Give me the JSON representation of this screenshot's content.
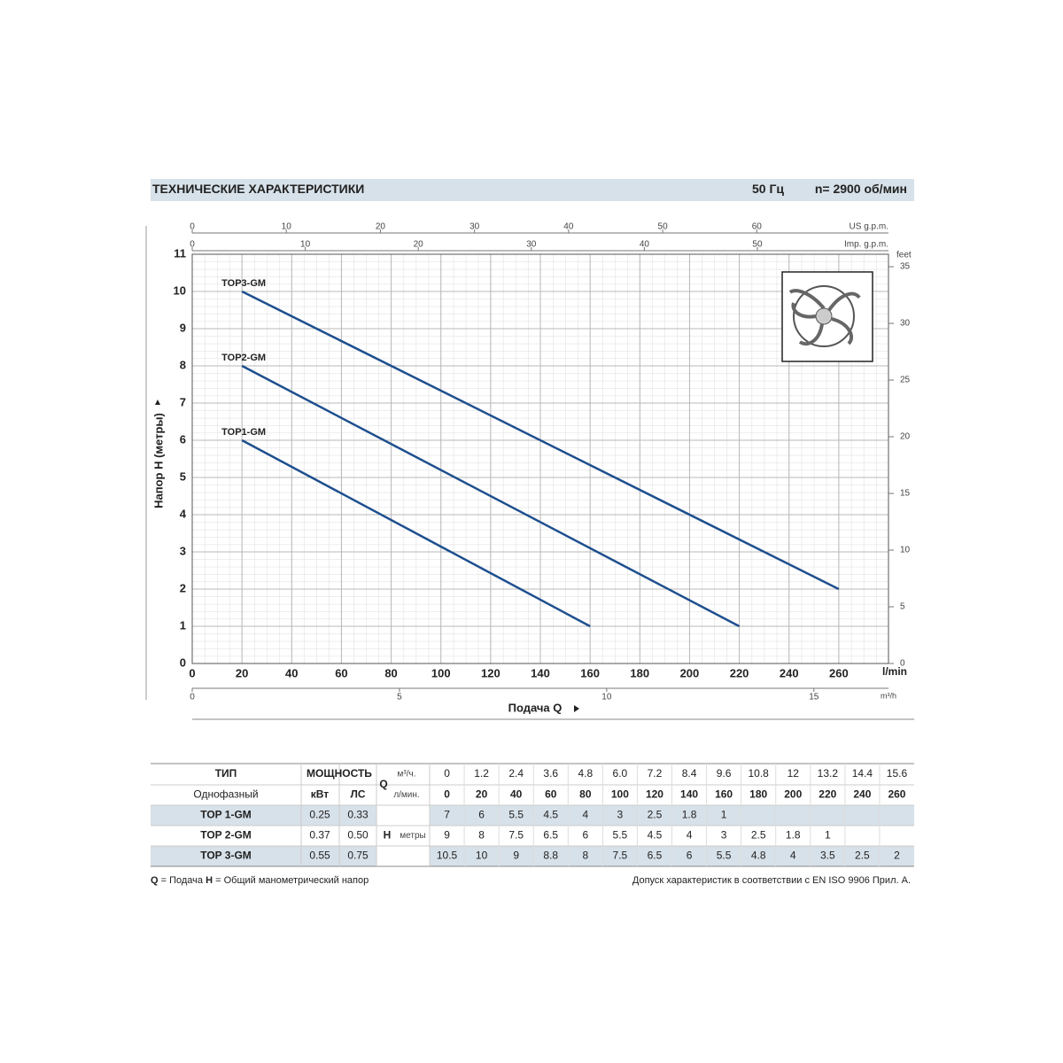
{
  "header": {
    "title": "ТЕХНИЧЕСКИЕ ХАРАКТЕРИСТИКИ",
    "frequency": "50 Гц",
    "speed": "n= 2900 об/мин"
  },
  "chart_data": {
    "type": "line",
    "xlabel": "Подача Q",
    "ylabel": "Напор H (метры)",
    "xunit": "l/min",
    "xlim": [
      0,
      280
    ],
    "xticks": [
      0,
      20,
      40,
      60,
      80,
      100,
      120,
      140,
      160,
      180,
      200,
      220,
      240,
      260
    ],
    "ylim": [
      0,
      11
    ],
    "yticks": [
      0,
      1,
      2,
      3,
      4,
      5,
      6,
      7,
      8,
      9,
      10,
      11
    ],
    "grid": true,
    "series": [
      {
        "name": "TOP3-GM",
        "color": "#1d4f8e",
        "x": [
          20,
          260
        ],
        "values": [
          10,
          2
        ]
      },
      {
        "name": "TOP2-GM",
        "color": "#1d4f8e",
        "x": [
          20,
          220
        ],
        "values": [
          8,
          1
        ]
      },
      {
        "name": "TOP1-GM",
        "color": "#1d4f8e",
        "x": [
          20,
          160
        ],
        "values": [
          6,
          1
        ]
      }
    ],
    "secondary_axes": [
      {
        "label": "US g.p.m.",
        "position": "top",
        "lim": [
          0,
          74
        ],
        "ticks": [
          0,
          10,
          20,
          30,
          40,
          50,
          60
        ]
      },
      {
        "label": "Imp. g.p.m.",
        "position": "top",
        "lim": [
          0,
          61.6
        ],
        "ticks": [
          0,
          10,
          20,
          30,
          40,
          50
        ]
      },
      {
        "label": "m³/h",
        "position": "bottom",
        "lim": [
          0,
          16.8
        ],
        "ticks": [
          0,
          5,
          10,
          15
        ]
      },
      {
        "label": "feet",
        "position": "right",
        "lim": [
          0,
          36.1
        ],
        "ticks": [
          0,
          5,
          10,
          15,
          20,
          25,
          30,
          35
        ]
      }
    ]
  },
  "table": {
    "type_header": "ТИП",
    "phase": "Однофазный",
    "power_header": "МОЩНОСТЬ",
    "kw": "кВт",
    "hp": "ЛС",
    "q_symbol": "Q",
    "q_m3h_unit": "м³/ч.",
    "q_lpm_unit": "л/мин.",
    "h_symbol": "H",
    "h_unit": "метры",
    "m3h": [
      "0",
      "1.2",
      "2.4",
      "3.6",
      "4.8",
      "6.0",
      "7.2",
      "8.4",
      "9.6",
      "10.8",
      "12",
      "13.2",
      "14.4",
      "15.6"
    ],
    "lpm": [
      "0",
      "20",
      "40",
      "60",
      "80",
      "100",
      "120",
      "140",
      "160",
      "180",
      "200",
      "220",
      "240",
      "260"
    ],
    "rows": [
      {
        "model": "TOP 1-GM",
        "kw": "0.25",
        "hp": "0.33",
        "head": [
          "7",
          "6",
          "5.5",
          "4.5",
          "4",
          "3",
          "2.5",
          "1.8",
          "1"
        ]
      },
      {
        "model": "TOP 2-GM",
        "kw": "0.37",
        "hp": "0.50",
        "head": [
          "9",
          "8",
          "7.5",
          "6.5",
          "6",
          "5.5",
          "4.5",
          "4",
          "3",
          "2.5",
          "1.8",
          "1"
        ]
      },
      {
        "model": "TOP 3-GM",
        "kw": "0.55",
        "hp": "0.75",
        "head": [
          "10.5",
          "10",
          "9",
          "8.8",
          "8",
          "7.5",
          "6.5",
          "6",
          "5.5",
          "4.8",
          "4",
          "3.5",
          "2.5",
          "2"
        ]
      }
    ]
  },
  "footer": {
    "q_symbol": "Q",
    "q_text": "= Подача",
    "h_symbol": "H",
    "h_text": "= Общий манометрический напор",
    "right": "Допуск характеристик в соответствии с EN ISO 9906 Прил. A."
  }
}
